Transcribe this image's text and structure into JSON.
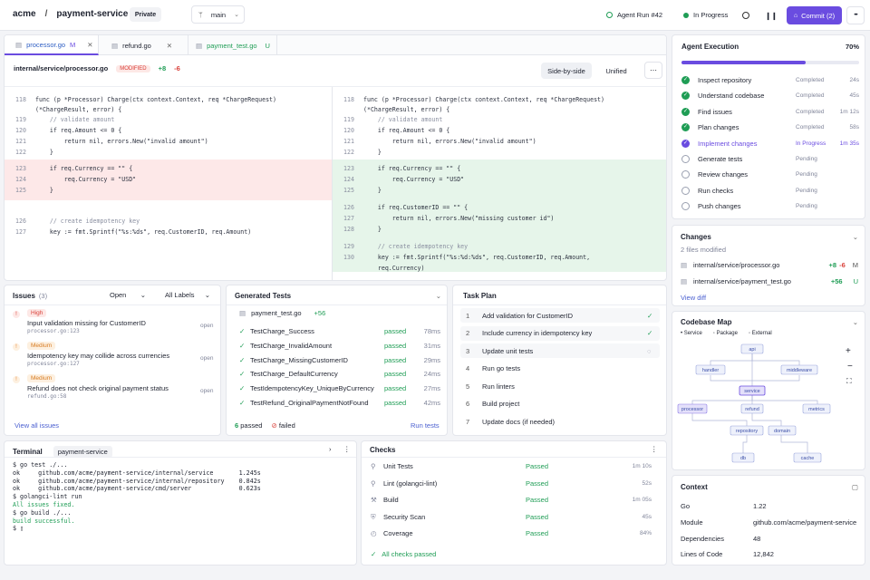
{
  "header": {
    "org": "acme",
    "separator": "/",
    "repo": "payment-service",
    "visibility": "Private",
    "branch": "main",
    "run_label": "Agent Run #42",
    "status": "In Progress",
    "commit_label": "Commit (2)",
    "more": "•••"
  },
  "tabs": [
    {
      "name": "processor.go",
      "status": "M"
    },
    {
      "name": "refund.go",
      "status": ""
    },
    {
      "name": "payment_test.go",
      "status": "U"
    }
  ],
  "diff": {
    "path": "internal/service/processor.go",
    "modified": "MODIFIED",
    "adds": "+8",
    "dels": "-6",
    "view_side": "Side-by-side",
    "view_unified": "Unified"
  },
  "left_code": [
    {
      "n": "118",
      "t": "func (p *Processor) Charge(ctx context.Context, req *ChargeRequest)"
    },
    {
      "n": "",
      "t": "(*ChargeResult, error) {"
    },
    {
      "n": "119",
      "t": "    // validate amount"
    },
    {
      "n": "120",
      "t": "    if req.Amount <= 0 {"
    },
    {
      "n": "121",
      "t": "        return nil, errors.New(\"invalid amount\")"
    },
    {
      "n": "122",
      "t": "    }"
    },
    {
      "n": "123",
      "t": "    if req.Currency == \"\" {"
    },
    {
      "n": "124",
      "t": "        req.Currency = \"USD\""
    },
    {
      "n": "125",
      "t": "    }"
    },
    {
      "n": "126",
      "t": "    // create idempotency key"
    },
    {
      "n": "127",
      "t": "    key := fmt.Sprintf(\"%s:%ds\", req.CustomerID, req.Amount)"
    }
  ],
  "right_code": [
    {
      "n": "118",
      "t": "func (p *Processor) Charge(ctx context.Context, req *ChargeRequest)"
    },
    {
      "n": "",
      "t": "(*ChargeResult, error) {"
    },
    {
      "n": "119",
      "t": "    // validate amount"
    },
    {
      "n": "120",
      "t": "    if req.Amount <= 0 {"
    },
    {
      "n": "121",
      "t": "        return nil, errors.New(\"invalid amount\")"
    },
    {
      "n": "122",
      "t": "    }"
    },
    {
      "n": "123",
      "t": "    if req.Currency == \"\" {"
    },
    {
      "n": "124",
      "t": "        req.Currency = \"USD\""
    },
    {
      "n": "125",
      "t": "    }"
    },
    {
      "n": "126",
      "t": "    if req.CustomerID == \"\" {"
    },
    {
      "n": "127",
      "t": "        return nil, errors.New(\"missing customer id\")"
    },
    {
      "n": "128",
      "t": "    }"
    },
    {
      "n": "129",
      "t": "    // create idempotency key"
    },
    {
      "n": "130",
      "t": "    key := fmt.Sprintf(\"%s:%d:%ds\", req.CustomerID, req.Amount,"
    },
    {
      "n": "",
      "t": "    req.Currency)"
    }
  ],
  "agent": {
    "title": "Agent Execution",
    "percent": "70%",
    "progress": 0.7,
    "steps": [
      {
        "name": "Inspect repository",
        "status": "Completed",
        "time": "24s",
        "state": "done"
      },
      {
        "name": "Understand codebase",
        "status": "Completed",
        "time": "45s",
        "state": "done"
      },
      {
        "name": "Find issues",
        "status": "Completed",
        "time": "1m 12s",
        "state": "done"
      },
      {
        "name": "Plan changes",
        "status": "Completed",
        "time": "58s",
        "state": "done"
      },
      {
        "name": "Implement changes",
        "status": "In Progress",
        "time": "1m 35s",
        "state": "active"
      },
      {
        "name": "Generate tests",
        "status": "Pending",
        "time": "",
        "state": "pending"
      },
      {
        "name": "Review changes",
        "status": "Pending",
        "time": "",
        "state": "pending"
      },
      {
        "name": "Run checks",
        "status": "Pending",
        "time": "",
        "state": "pending"
      },
      {
        "name": "Push changes",
        "status": "Pending",
        "time": "",
        "state": "pending"
      }
    ]
  },
  "changes": {
    "title": "Changes",
    "summary": "2 files modified",
    "files": [
      {
        "path": "internal/service/processor.go",
        "delta": "+8 -6",
        "add": "+8",
        "del": "-6",
        "flag": "M"
      },
      {
        "path": "internal/service/payment_test.go",
        "delta": "+56",
        "add": "+56",
        "del": "",
        "flag": "U"
      }
    ],
    "view_diff": "View diff"
  },
  "codemap": {
    "title": "Codebase Map",
    "legend": [
      "Service",
      "Package",
      "External"
    ],
    "nodes": [
      "api",
      "handler",
      "middleware",
      "service",
      "processor",
      "refund",
      "metrics",
      "repository",
      "domain",
      "db",
      "cache"
    ]
  },
  "context": {
    "title": "Context",
    "rows": [
      {
        "k": "Go",
        "v": "1.22"
      },
      {
        "k": "Module",
        "v": "github.com/acme/payment-service"
      },
      {
        "k": "Dependencies",
        "v": "48"
      },
      {
        "k": "Lines of Code",
        "v": "12,842"
      }
    ]
  },
  "issues": {
    "title": "Issues",
    "count": "(3)",
    "filter_state": "Open",
    "filter_labels": "All Labels",
    "items": [
      {
        "sev": "High",
        "text": "Input validation missing for CustomerID",
        "loc": "processor.go:123",
        "state": "open"
      },
      {
        "sev": "Medium",
        "text": "Idempotency key may collide across currencies",
        "loc": "processor.go:127",
        "state": "open"
      },
      {
        "sev": "Medium",
        "text": "Refund does not check original payment status",
        "loc": "refund.go:58",
        "state": "open"
      }
    ],
    "view_all": "View all issues"
  },
  "tests": {
    "title": "Generated Tests",
    "file": "payment_test.go",
    "file_add": "+56",
    "items": [
      {
        "name": "TestCharge_Success",
        "status": "passed",
        "ms": "78ms"
      },
      {
        "name": "TestCharge_InvalidAmount",
        "status": "passed",
        "ms": "31ms"
      },
      {
        "name": "TestCharge_MissingCustomerID",
        "status": "passed",
        "ms": "29ms"
      },
      {
        "name": "TestCharge_DefaultCurrency",
        "status": "passed",
        "ms": "24ms"
      },
      {
        "name": "TestIdempotencyKey_UniqueByCurrency",
        "status": "passed",
        "ms": "27ms"
      },
      {
        "name": "TestRefund_OriginalPaymentNotFound",
        "status": "passed",
        "ms": "42ms"
      }
    ],
    "passed": "6 passed",
    "failed": "0 failed",
    "run": "Run tests"
  },
  "plan": {
    "title": "Task Plan",
    "items": [
      {
        "n": "1",
        "text": "Add validation for CustomerID",
        "state": "done"
      },
      {
        "n": "2",
        "text": "Include currency in idempotency key",
        "state": "done"
      },
      {
        "n": "3",
        "text": "Update unit tests",
        "state": "loading"
      },
      {
        "n": "4",
        "text": "Run go tests",
        "state": ""
      },
      {
        "n": "5",
        "text": "Run linters",
        "state": ""
      },
      {
        "n": "6",
        "text": "Build project",
        "state": ""
      },
      {
        "n": "7",
        "text": "Update docs (if needed)",
        "state": ""
      }
    ]
  },
  "terminal": {
    "title": "Terminal",
    "tab": "payment-service",
    "lines": [
      "$ go test ./...",
      "ok     github.com/acme/payment-service/internal/service       1.245s",
      "ok     github.com/acme/payment-service/internal/repository    0.842s",
      "ok     github.com/acme/payment-service/cmd/server             0.623s",
      "",
      "$ golangci-lint run",
      "All issues fixed.",
      "",
      "$ go build ./...",
      "build successful.",
      "",
      "$ ▯"
    ]
  },
  "checks": {
    "title": "Checks",
    "items": [
      {
        "name": "Unit Tests",
        "status": "Passed",
        "time": "1m 10s"
      },
      {
        "name": "Lint (golangci-lint)",
        "status": "Passed",
        "time": "52s"
      },
      {
        "name": "Build",
        "status": "Passed",
        "time": "1m 05s"
      },
      {
        "name": "Security Scan",
        "status": "Passed",
        "time": "45s"
      },
      {
        "name": "Coverage",
        "status": "Passed",
        "time": "84%"
      }
    ],
    "footer": "All checks passed"
  },
  "colors": {
    "accent": "#6a4ce0",
    "success": "#1f9d55",
    "danger": "#d9403a",
    "warning": "#e6873a"
  }
}
